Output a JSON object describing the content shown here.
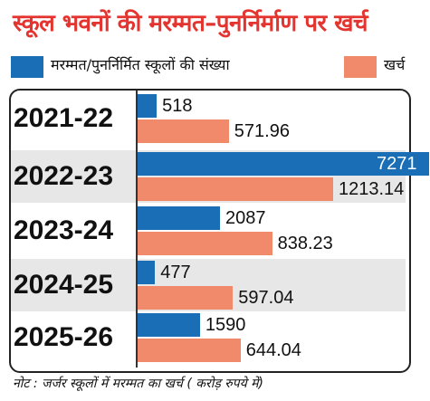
{
  "title": "स्कूल भवनों की मरम्मत–पुनर्निर्माण पर खर्च",
  "legend": {
    "count_label": "मरम्मत/पुनर्निर्मित स्कूलों की संख्या",
    "expense_label": "खर्च"
  },
  "colors": {
    "count": "#1a6eb5",
    "expense": "#f08a6a",
    "title": "#e3342f",
    "band": "#e7e7e7"
  },
  "note": "नोट : जर्जर स्कूलों में मरम्मत का खर्च ( करोड़ रुपये में)",
  "chart_data": {
    "type": "bar",
    "orientation": "horizontal",
    "title": "स्कूल भवनों की मरम्मत–पुनर्निर्माण पर खर्च",
    "categories": [
      "2021-22",
      "2022-23",
      "2023-24",
      "2024-25",
      "2025-26"
    ],
    "series": [
      {
        "name": "मरम्मत/पुनर्निर्मित स्कूलों की संख्या",
        "values": [
          518,
          7271,
          2087,
          477,
          1590
        ],
        "labels": [
          "518",
          "7271",
          "2087",
          "477",
          "1590"
        ]
      },
      {
        "name": "खर्च",
        "values": [
          571.96,
          1213.14,
          838.23,
          597.04,
          644.04
        ],
        "labels": [
          "571.96",
          "1213.14",
          "838.23",
          "597.04",
          "644.04"
        ]
      }
    ],
    "legend_position": "top",
    "grid": false
  }
}
